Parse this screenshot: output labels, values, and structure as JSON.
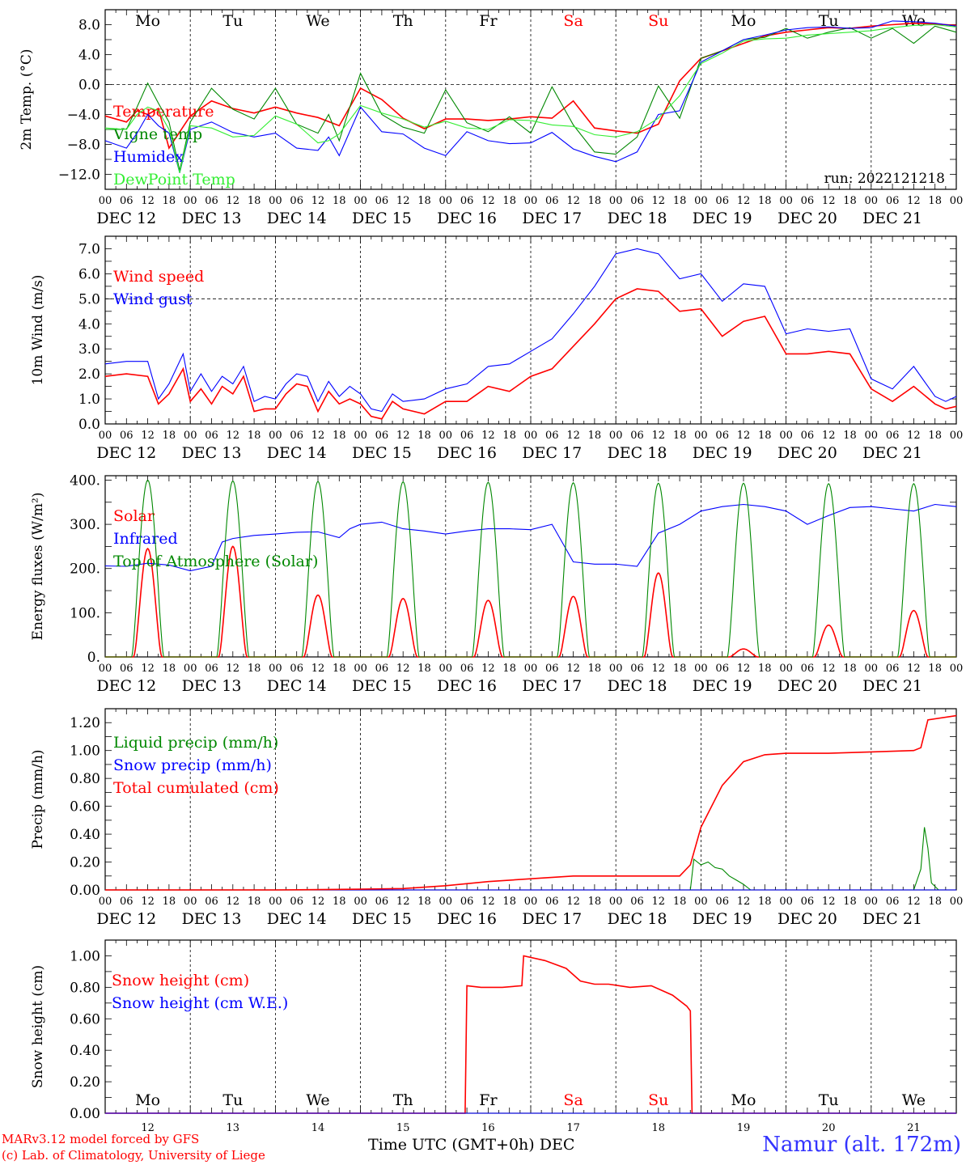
{
  "days": [
    "DEC 12",
    "DEC 13",
    "DEC 14",
    "DEC 15",
    "DEC 16",
    "DEC 17",
    "DEC 18",
    "DEC 19",
    "DEC 20",
    "DEC 21"
  ],
  "weekdays": [
    "Mo",
    "Tu",
    "We",
    "Th",
    "Fr",
    "Sa",
    "Su",
    "Mo",
    "Tu",
    "We"
  ],
  "day_numbers": [
    "12",
    "13",
    "14",
    "15",
    "16",
    "17",
    "18",
    "19",
    "20",
    "21"
  ],
  "hour_ticks": [
    "00",
    "06",
    "12",
    "18"
  ],
  "weekend_color": "#ff0000",
  "footer": {
    "credit_line1": "MARv3.12 model forced by GFS",
    "credit_line2": "(c) Lab. of Climatology, University of Liege",
    "xlabel": "Time UTC (GMT+0h) DEC",
    "station": "Namur (alt. 172m)"
  },
  "chart_data": [
    {
      "type": "line",
      "ylabel": "2m Temp. (°C)",
      "yticks": [
        "8.0",
        "4.0",
        "0.0",
        "−4.0",
        "−8.0",
        "−12.0"
      ],
      "ytick_values": [
        8,
        4,
        0,
        -4,
        -8,
        -12
      ],
      "ylim": [
        -14,
        10
      ],
      "annotation": "run: 2022121218",
      "reference_line": 0,
      "x_unit": "hours since DEC 12 00 UTC",
      "series": [
        {
          "name": "Temperature",
          "color": "#ff0000",
          "x": [
            0,
            6,
            9,
            12,
            15,
            18,
            24,
            30,
            36,
            42,
            48,
            54,
            60,
            66,
            72,
            78,
            84,
            90,
            96,
            102,
            108,
            114,
            120,
            126,
            132,
            138,
            144,
            150,
            156,
            162,
            168,
            174,
            180,
            186,
            192,
            198,
            204,
            210,
            216,
            222,
            228,
            234,
            240
          ],
          "y": [
            -4.2,
            -5,
            -3.5,
            -4,
            -3.2,
            -8.5,
            -4.2,
            -2.2,
            -3.2,
            -3.8,
            -3,
            -3.8,
            -4.4,
            -5.5,
            -0.5,
            -2,
            -4.5,
            -5.9,
            -4.6,
            -4.6,
            -4.8,
            -4.6,
            -4.3,
            -4.5,
            -2.2,
            -5.8,
            -6.2,
            -6.5,
            -5.3,
            0.5,
            3.5,
            4.5,
            5.5,
            6.5,
            7,
            7.3,
            7.6,
            7.5,
            7.8,
            8,
            8.2,
            8.1,
            7.9
          ]
        },
        {
          "name": "Vigne temp",
          "color": "#008800",
          "x": [
            0,
            6,
            9,
            12,
            15,
            18,
            21,
            24,
            30,
            36,
            42,
            48,
            54,
            60,
            63,
            66,
            72,
            78,
            84,
            90,
            96,
            102,
            108,
            114,
            120,
            126,
            132,
            138,
            144,
            150,
            156,
            162,
            168,
            174,
            180,
            186,
            192,
            198,
            204,
            210,
            216,
            222,
            228,
            234,
            240
          ],
          "y": [
            -6,
            -6,
            -3,
            0.2,
            -2.5,
            -5,
            -11.5,
            -5,
            -0.5,
            -3.3,
            -4.6,
            -0.5,
            -5.3,
            -6.5,
            -4,
            -7.5,
            1.5,
            -4,
            -5.7,
            -6.5,
            -0.7,
            -5.1,
            -6.3,
            -4.3,
            -6.5,
            -0.3,
            -5.4,
            -9,
            -9.3,
            -7,
            -0.2,
            -4.5,
            3.5,
            4.5,
            6,
            6.3,
            7.5,
            6.2,
            7,
            7.6,
            6.2,
            7.5,
            5.5,
            7.8,
            7
          ]
        },
        {
          "name": "Humidex",
          "color": "#0000ff",
          "x": [
            0,
            6,
            9,
            12,
            15,
            18,
            21,
            24,
            30,
            36,
            42,
            48,
            54,
            60,
            63,
            66,
            72,
            78,
            84,
            90,
            96,
            102,
            108,
            114,
            120,
            126,
            132,
            138,
            144,
            150,
            156,
            162,
            168,
            174,
            180,
            186,
            192,
            198,
            204,
            210,
            216,
            222,
            228,
            234,
            240
          ],
          "y": [
            -7.5,
            -8.5,
            -6.5,
            -4,
            -5.5,
            -6.5,
            -11.8,
            -6,
            -5,
            -6.4,
            -7,
            -6.5,
            -8.5,
            -8.8,
            -7,
            -9.5,
            -3,
            -6.3,
            -6.6,
            -8.5,
            -9.5,
            -6.3,
            -7.5,
            -7.9,
            -7.8,
            -6.4,
            -8.6,
            -9.6,
            -10.3,
            -9,
            -4,
            -3.5,
            3,
            4.5,
            6,
            6.6,
            7.3,
            7.6,
            7.7,
            7.5,
            7.6,
            8.5,
            8.4,
            8.2,
            7.8
          ]
        },
        {
          "name": "DewPoint Temp",
          "color": "#33ee33",
          "x": [
            0,
            6,
            9,
            12,
            15,
            18,
            21,
            24,
            30,
            36,
            42,
            48,
            54,
            60,
            63,
            66,
            72,
            78,
            84,
            90,
            96,
            102,
            108,
            114,
            120,
            126,
            132,
            138,
            144,
            150,
            156,
            162,
            168,
            174,
            180,
            186,
            192,
            198,
            204,
            210,
            216,
            222,
            228,
            234,
            240
          ],
          "y": [
            -5.8,
            -6,
            -4,
            -3,
            -3.5,
            -6,
            -11.8,
            -5.5,
            -5.8,
            -7,
            -6.8,
            -4.2,
            -5.3,
            -7.8,
            -7.5,
            -6.6,
            -2.8,
            -3.8,
            -4.6,
            -5.7,
            -4.9,
            -5.8,
            -6,
            -4.7,
            -4.8,
            -5.4,
            -5.6,
            -6.7,
            -7,
            -6.3,
            -4.5,
            -1.5,
            2.8,
            4.2,
            5.8,
            6.1,
            6.2,
            6.6,
            6.8,
            7,
            7.2,
            7.6,
            7.9,
            8,
            7.7
          ]
        }
      ]
    },
    {
      "type": "line",
      "ylabel": "10m Wind (m/s)",
      "yticks": [
        "7.0",
        "6.0",
        "5.0",
        "4.0",
        "3.0",
        "2.0",
        "1.0",
        "0.0"
      ],
      "ytick_values": [
        7,
        6,
        5,
        4,
        3,
        2,
        1,
        0
      ],
      "ylim": [
        0,
        7.5
      ],
      "reference_line": 5,
      "x_unit": "hours since DEC 12 00 UTC",
      "series": [
        {
          "name": "Wind speed",
          "color": "#ff0000",
          "x": [
            0,
            6,
            12,
            15,
            18,
            22,
            24,
            27,
            30,
            33,
            36,
            39,
            42,
            45,
            48,
            51,
            54,
            57,
            60,
            63,
            66,
            69,
            72,
            75,
            78,
            81,
            84,
            90,
            96,
            102,
            108,
            114,
            120,
            126,
            132,
            138,
            144,
            150,
            156,
            162,
            168,
            174,
            180,
            186,
            192,
            198,
            204,
            210,
            216,
            222,
            228,
            234,
            237,
            240
          ],
          "y": [
            1.9,
            2,
            1.9,
            0.8,
            1.2,
            2.2,
            0.9,
            1.4,
            0.8,
            1.5,
            1.2,
            1.9,
            0.5,
            0.6,
            0.6,
            1.2,
            1.6,
            1.5,
            0.5,
            1.3,
            0.8,
            1.0,
            0.8,
            0.3,
            0.2,
            0.9,
            0.6,
            0.4,
            0.9,
            0.9,
            1.5,
            1.3,
            1.9,
            2.2,
            3.1,
            4,
            5,
            5.4,
            5.3,
            4.5,
            4.6,
            3.5,
            4.1,
            4.3,
            2.8,
            2.8,
            2.9,
            2.8,
            1.4,
            0.9,
            1.5,
            0.8,
            0.6,
            0.7
          ]
        },
        {
          "name": "Wind gust",
          "color": "#0000ff",
          "x": [
            0,
            6,
            12,
            15,
            18,
            22,
            24,
            27,
            30,
            33,
            36,
            39,
            42,
            45,
            48,
            51,
            54,
            57,
            60,
            63,
            66,
            69,
            72,
            75,
            78,
            81,
            84,
            90,
            96,
            102,
            108,
            114,
            120,
            126,
            132,
            138,
            144,
            150,
            156,
            162,
            168,
            174,
            180,
            186,
            192,
            198,
            204,
            210,
            216,
            222,
            228,
            234,
            237,
            240
          ],
          "y": [
            2.4,
            2.5,
            2.5,
            1.0,
            1.6,
            2.8,
            1.3,
            2.0,
            1.3,
            1.9,
            1.6,
            2.3,
            0.9,
            1.1,
            1.0,
            1.6,
            2.0,
            1.9,
            0.9,
            1.7,
            1.1,
            1.5,
            1.2,
            0.6,
            0.5,
            1.2,
            0.9,
            1.0,
            1.4,
            1.6,
            2.3,
            2.4,
            2.9,
            3.4,
            4.4,
            5.5,
            6.8,
            7.0,
            6.8,
            5.8,
            6.0,
            4.9,
            5.6,
            5.5,
            3.6,
            3.8,
            3.7,
            3.8,
            1.8,
            1.4,
            2.3,
            1.1,
            0.9,
            1.1
          ]
        }
      ]
    },
    {
      "type": "line",
      "ylabel": "Energy fluxes (W/m²)",
      "yticks": [
        "400.",
        "300.",
        "200.",
        "100.",
        "0."
      ],
      "ytick_values": [
        400,
        300,
        200,
        100,
        0
      ],
      "ylim": [
        0,
        410
      ],
      "x_unit": "hours since DEC 12 00 UTC",
      "series": [
        {
          "name": "Solar",
          "color": "#ff0000",
          "daily_peak": [
            245,
            250,
            140,
            132,
            128,
            137,
            190,
            18,
            72,
            105
          ]
        },
        {
          "name": "Infrared",
          "color": "#0000ff",
          "x": [
            0,
            6,
            12,
            18,
            24,
            30,
            33,
            36,
            42,
            48,
            54,
            60,
            66,
            69,
            72,
            78,
            84,
            90,
            96,
            102,
            108,
            114,
            120,
            126,
            132,
            138,
            144,
            150,
            156,
            162,
            168,
            174,
            180,
            186,
            192,
            198,
            204,
            210,
            216,
            222,
            228,
            234,
            240
          ],
          "y": [
            206,
            205,
            212,
            208,
            195,
            205,
            260,
            268,
            275,
            278,
            282,
            283,
            270,
            290,
            300,
            305,
            290,
            285,
            278,
            285,
            290,
            290,
            288,
            300,
            215,
            210,
            210,
            205,
            280,
            300,
            330,
            340,
            345,
            340,
            330,
            300,
            320,
            338,
            340,
            335,
            330,
            345,
            340
          ]
        },
        {
          "name": "Top of Atmosphere (Solar)",
          "color": "#008800",
          "daily_peak": [
            400,
            398,
            397,
            396,
            395,
            394,
            393,
            393,
            392,
            392
          ]
        }
      ]
    },
    {
      "type": "line",
      "ylabel": "Precip (mm/h)",
      "yticks": [
        "1.20",
        "1.00",
        "0.80",
        "0.60",
        "0.40",
        "0.20",
        "0.00"
      ],
      "ytick_values": [
        1.2,
        1.0,
        0.8,
        0.6,
        0.4,
        0.2,
        0.0
      ],
      "ylim": [
        0,
        1.3
      ],
      "x_unit": "hours since DEC 12 00 UTC",
      "series": [
        {
          "name": "Liquid precip (mm/h)",
          "color": "#008800",
          "x": [
            0,
            165,
            166,
            168,
            170,
            172,
            174,
            176,
            178,
            180,
            182,
            186,
            190,
            228,
            230,
            231,
            232,
            233,
            235,
            240
          ],
          "y": [
            0,
            0,
            0.22,
            0.18,
            0.2,
            0.16,
            0.15,
            0.1,
            0.07,
            0.04,
            0,
            0,
            0,
            0,
            0.15,
            0.45,
            0.3,
            0.05,
            0,
            0
          ]
        },
        {
          "name": "Snow precip (mm/h)",
          "color": "#0000ff",
          "x": [
            0,
            240
          ],
          "y": [
            0,
            0
          ]
        },
        {
          "name": "Total cumulated (cm)",
          "color": "#ff0000",
          "x": [
            0,
            48,
            72,
            84,
            96,
            108,
            120,
            132,
            144,
            156,
            162,
            165,
            168,
            174,
            180,
            186,
            192,
            204,
            216,
            228,
            230,
            232,
            240
          ],
          "y": [
            0,
            0,
            0.005,
            0.01,
            0.03,
            0.06,
            0.08,
            0.1,
            0.1,
            0.1,
            0.1,
            0.18,
            0.45,
            0.75,
            0.92,
            0.97,
            0.98,
            0.98,
            0.99,
            1.0,
            1.02,
            1.22,
            1.25
          ]
        }
      ]
    },
    {
      "type": "line",
      "ylabel": "Snow height (cm)",
      "yticks": [
        "1.00",
        "0.80",
        "0.60",
        "0.40",
        "0.20",
        "0.00"
      ],
      "ytick_values": [
        1.0,
        0.8,
        0.6,
        0.4,
        0.2,
        0.0
      ],
      "ylim": [
        0,
        1.1
      ],
      "x_unit": "hours since DEC 12 00 UTC",
      "series": [
        {
          "name": "Snow height (cm)",
          "color": "#ff0000",
          "x": [
            0,
            101.5,
            102,
            106,
            112,
            117.5,
            118,
            124,
            130,
            134,
            138,
            142,
            148,
            154,
            160,
            164,
            165,
            165.5,
            240
          ],
          "y": [
            0,
            0,
            0.81,
            0.8,
            0.8,
            0.81,
            1.0,
            0.97,
            0.92,
            0.84,
            0.82,
            0.82,
            0.8,
            0.81,
            0.75,
            0.68,
            0.65,
            0,
            0
          ]
        },
        {
          "name": "Snow height (cm W.E.)",
          "color": "#0000ff",
          "x": [
            0,
            240
          ],
          "y": [
            0,
            0
          ]
        }
      ]
    }
  ]
}
